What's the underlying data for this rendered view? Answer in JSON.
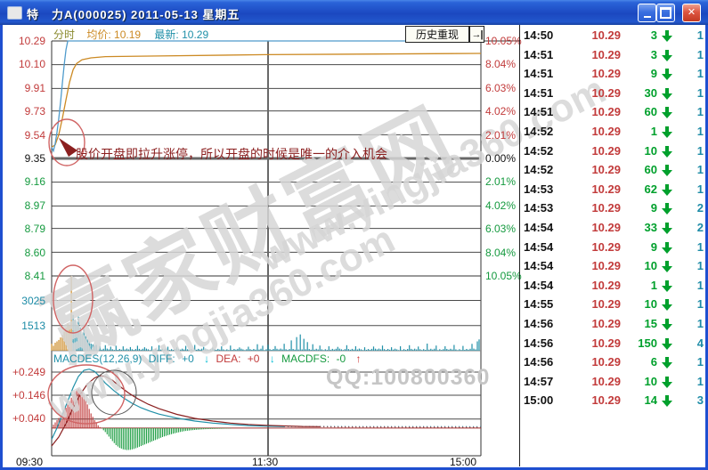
{
  "palette": {
    "up": "#c23b3b",
    "down": "#159a3f",
    "flat": "#111111",
    "teal": "#2090a8",
    "orange": "#cc8a24",
    "blue": "#4f9bcc",
    "list_green": "#00a02c",
    "count_teal": "#1c8ba6",
    "annotation": "#8b1f1f",
    "watermark": "#d6d6d6"
  },
  "window": {
    "title": "特　力A(000025) 2011-05-13 星期五"
  },
  "header": {
    "mode": "分时",
    "avg_label": "均价:",
    "avg_value": "10.19",
    "last_label": "最新:",
    "last_value": "10.29",
    "history_button": "历史重现",
    "next_button": "→|"
  },
  "macd_header": {
    "name": "MACDES(12,26,9)",
    "diff_label": "DIFF:",
    "diff_value": "+0",
    "dea_label": "DEA:",
    "dea_value": "+0",
    "macdfs_label": "MACDFS:",
    "macdfs_value": "-0",
    "down_arrow": "↓",
    "up_arrow": "↑"
  },
  "annotation": {
    "text": "股价开盘即拉升涨停，所以开盘的时候是唯一的介入机会"
  },
  "watermark": {
    "site_cn": "赢家财富网",
    "site_url": "www.yingjia360.com",
    "site_url2": "www.yingjia360.com",
    "qq": "QQ:100800360"
  },
  "axes": {
    "price": [
      {
        "t": "10.29",
        "k": "up"
      },
      {
        "t": "10.10",
        "k": "up"
      },
      {
        "t": "9.91",
        "k": "up"
      },
      {
        "t": "9.73",
        "k": "up"
      },
      {
        "t": "9.54",
        "k": "up"
      },
      {
        "t": "9.35",
        "k": "flat"
      },
      {
        "t": "9.16",
        "k": "down"
      },
      {
        "t": "8.97",
        "k": "down"
      },
      {
        "t": "8.79",
        "k": "down"
      },
      {
        "t": "8.60",
        "k": "down"
      },
      {
        "t": "8.41",
        "k": "down"
      }
    ],
    "percent": [
      {
        "t": "10.05%",
        "k": "up"
      },
      {
        "t": "8.04%",
        "k": "up"
      },
      {
        "t": "6.03%",
        "k": "up"
      },
      {
        "t": "4.02%",
        "k": "up"
      },
      {
        "t": "2.01%",
        "k": "up"
      },
      {
        "t": "0.00%",
        "k": "flat"
      },
      {
        "t": "2.01%",
        "k": "down"
      },
      {
        "t": "4.02%",
        "k": "down"
      },
      {
        "t": "6.03%",
        "k": "down"
      },
      {
        "t": "8.04%",
        "k": "down"
      },
      {
        "t": "10.05%",
        "k": "down"
      }
    ],
    "volume": [
      {
        "t": "3025",
        "k": "teal"
      },
      {
        "t": "1513",
        "k": "teal"
      }
    ],
    "macd": [
      {
        "t": "+0.249",
        "k": "up"
      },
      {
        "t": "+0.146",
        "k": "up"
      },
      {
        "t": "+0.040",
        "k": "up"
      }
    ],
    "time": [
      {
        "t": "09:30",
        "k": "t0"
      },
      {
        "t": "11:30",
        "k": "t1"
      },
      {
        "t": "15:00",
        "k": "t2"
      }
    ]
  },
  "trade_list": {
    "arrow_direction": "down",
    "rows": [
      {
        "time": "14:50",
        "price": "10.29",
        "vol": "3",
        "cnt": "1"
      },
      {
        "time": "14:51",
        "price": "10.29",
        "vol": "3",
        "cnt": "1"
      },
      {
        "time": "14:51",
        "price": "10.29",
        "vol": "9",
        "cnt": "1"
      },
      {
        "time": "14:51",
        "price": "10.29",
        "vol": "30",
        "cnt": "1"
      },
      {
        "time": "14:51",
        "price": "10.29",
        "vol": "60",
        "cnt": "1"
      },
      {
        "time": "14:52",
        "price": "10.29",
        "vol": "1",
        "cnt": "1"
      },
      {
        "time": "14:52",
        "price": "10.29",
        "vol": "10",
        "cnt": "1"
      },
      {
        "time": "14:52",
        "price": "10.29",
        "vol": "60",
        "cnt": "1"
      },
      {
        "time": "14:53",
        "price": "10.29",
        "vol": "62",
        "cnt": "1"
      },
      {
        "time": "14:53",
        "price": "10.29",
        "vol": "9",
        "cnt": "2"
      },
      {
        "time": "14:54",
        "price": "10.29",
        "vol": "33",
        "cnt": "2"
      },
      {
        "time": "14:54",
        "price": "10.29",
        "vol": "9",
        "cnt": "1"
      },
      {
        "time": "14:54",
        "price": "10.29",
        "vol": "10",
        "cnt": "1"
      },
      {
        "time": "14:54",
        "price": "10.29",
        "vol": "1",
        "cnt": "1"
      },
      {
        "time": "14:55",
        "price": "10.29",
        "vol": "10",
        "cnt": "1"
      },
      {
        "time": "14:56",
        "price": "10.29",
        "vol": "15",
        "cnt": "1"
      },
      {
        "time": "14:56",
        "price": "10.29",
        "vol": "150",
        "cnt": "4"
      },
      {
        "time": "14:56",
        "price": "10.29",
        "vol": "6",
        "cnt": "1"
      },
      {
        "time": "14:57",
        "price": "10.29",
        "vol": "10",
        "cnt": "1"
      },
      {
        "time": "15:00",
        "price": "10.29",
        "vol": "14",
        "cnt": "3"
      }
    ]
  },
  "chart_data": {
    "type": "line",
    "title": "分时",
    "x_axis": {
      "labels": [
        "09:30",
        "11:30",
        "15:00"
      ],
      "total_minutes": 240
    },
    "price_axis": {
      "max": 10.29,
      "mid": 9.35,
      "min": 8.41,
      "pct_max": 10.05
    },
    "series": [
      {
        "name": "price",
        "color_key": "blue",
        "points": [
          [
            0,
            9.44
          ],
          [
            1,
            9.41
          ],
          [
            2,
            9.47
          ],
          [
            3,
            9.56
          ],
          [
            4,
            9.67
          ],
          [
            5,
            9.8
          ],
          [
            6,
            9.95
          ],
          [
            7,
            10.1
          ],
          [
            8,
            10.22
          ],
          [
            9,
            10.29
          ],
          [
            240,
            10.29
          ]
        ]
      },
      {
        "name": "avg_price",
        "color_key": "orange",
        "points": [
          [
            0,
            9.44
          ],
          [
            2,
            9.46
          ],
          [
            4,
            9.54
          ],
          [
            6,
            9.67
          ],
          [
            8,
            9.82
          ],
          [
            10,
            9.96
          ],
          [
            12,
            10.06
          ],
          [
            14,
            10.11
          ],
          [
            17,
            10.14
          ],
          [
            22,
            10.155
          ],
          [
            30,
            10.165
          ],
          [
            60,
            10.17
          ],
          [
            120,
            10.18
          ],
          [
            240,
            10.19
          ]
        ]
      }
    ],
    "volume": {
      "gridlines": [
        3025,
        1513
      ],
      "scale_max": 4500,
      "bars": [
        [
          0,
          420,
          "o"
        ],
        [
          1,
          300,
          "o"
        ],
        [
          2,
          480,
          "o"
        ],
        [
          3,
          560,
          "o"
        ],
        [
          4,
          650,
          "o"
        ],
        [
          5,
          800,
          "o"
        ],
        [
          6,
          950,
          "o"
        ],
        [
          7,
          1150,
          "o"
        ],
        [
          8,
          1400,
          "o"
        ],
        [
          9,
          1650,
          "o"
        ],
        [
          10,
          1500,
          "o"
        ],
        [
          11,
          4500,
          "o"
        ],
        [
          12,
          2150,
          "b"
        ],
        [
          13,
          1850,
          "b"
        ],
        [
          14,
          1500,
          "b"
        ],
        [
          15,
          2050,
          "b"
        ],
        [
          16,
          1400,
          "b"
        ],
        [
          17,
          1000,
          "b"
        ],
        [
          18,
          1300,
          "b"
        ],
        [
          19,
          900,
          "b"
        ],
        [
          20,
          700,
          "b"
        ],
        [
          21,
          550,
          "b"
        ],
        [
          22,
          430,
          "b"
        ],
        [
          23,
          380,
          "b"
        ],
        [
          24,
          310,
          "b"
        ],
        [
          25,
          350,
          "b"
        ],
        [
          27,
          280,
          "b"
        ],
        [
          30,
          330,
          "b"
        ],
        [
          33,
          240,
          "b"
        ],
        [
          36,
          300,
          "b"
        ],
        [
          40,
          260,
          "b"
        ],
        [
          44,
          220,
          "b"
        ],
        [
          48,
          300,
          "b"
        ],
        [
          52,
          210,
          "b"
        ],
        [
          56,
          260,
          "b"
        ],
        [
          60,
          330,
          "b"
        ],
        [
          65,
          240,
          "b"
        ],
        [
          70,
          200,
          "b"
        ],
        [
          75,
          290,
          "b"
        ],
        [
          80,
          350,
          "b"
        ],
        [
          85,
          230,
          "b"
        ],
        [
          90,
          180,
          "b"
        ],
        [
          95,
          260,
          "b"
        ],
        [
          100,
          310,
          "b"
        ],
        [
          105,
          200,
          "b"
        ],
        [
          110,
          240,
          "b"
        ],
        [
          115,
          390,
          "b"
        ],
        [
          118,
          300,
          "b"
        ],
        [
          121,
          360,
          "b"
        ],
        [
          125,
          280,
          "b"
        ],
        [
          130,
          420,
          "b"
        ],
        [
          134,
          620,
          "b"
        ],
        [
          137,
          820,
          "b"
        ],
        [
          139,
          980,
          "b"
        ],
        [
          141,
          720,
          "b"
        ],
        [
          143,
          520,
          "b"
        ],
        [
          146,
          390,
          "b"
        ],
        [
          150,
          310,
          "b"
        ],
        [
          155,
          270,
          "b"
        ],
        [
          160,
          230,
          "b"
        ],
        [
          165,
          330,
          "b"
        ],
        [
          170,
          270,
          "b"
        ],
        [
          175,
          210,
          "b"
        ],
        [
          180,
          250,
          "b"
        ],
        [
          185,
          310,
          "b"
        ],
        [
          190,
          210,
          "b"
        ],
        [
          195,
          270,
          "b"
        ],
        [
          200,
          330,
          "b"
        ],
        [
          205,
          250,
          "b"
        ],
        [
          210,
          430,
          "b"
        ],
        [
          215,
          310,
          "b"
        ],
        [
          220,
          270,
          "b"
        ],
        [
          225,
          350,
          "b"
        ],
        [
          230,
          290,
          "b"
        ],
        [
          235,
          410,
          "b"
        ],
        [
          238,
          560,
          "b"
        ],
        [
          239,
          680,
          "b"
        ]
      ],
      "noise": {
        "base": 35,
        "range": 97
      }
    },
    "macd": {
      "name": "MACDES(12,26,9)",
      "gridlines": [
        0.249,
        0.146,
        0.04
      ],
      "diff": [
        [
          0,
          -0.05
        ],
        [
          3,
          0.0
        ],
        [
          6,
          0.06
        ],
        [
          9,
          0.12
        ],
        [
          12,
          0.18
        ],
        [
          15,
          0.23
        ],
        [
          18,
          0.257
        ],
        [
          21,
          0.262
        ],
        [
          24,
          0.252
        ],
        [
          27,
          0.228
        ],
        [
          30,
          0.2
        ],
        [
          35,
          0.165
        ],
        [
          40,
          0.135
        ],
        [
          45,
          0.11
        ],
        [
          50,
          0.09
        ],
        [
          55,
          0.075
        ],
        [
          60,
          0.062
        ],
        [
          70,
          0.044
        ],
        [
          80,
          0.031
        ],
        [
          90,
          0.022
        ],
        [
          100,
          0.016
        ],
        [
          110,
          0.011
        ],
        [
          120,
          0.008
        ],
        [
          130,
          0.007
        ],
        [
          240,
          0.006
        ]
      ],
      "dea": [
        [
          0,
          -0.08
        ],
        [
          4,
          -0.04
        ],
        [
          8,
          0.02
        ],
        [
          12,
          0.09
        ],
        [
          16,
          0.15
        ],
        [
          20,
          0.196
        ],
        [
          24,
          0.223
        ],
        [
          27,
          0.233
        ],
        [
          30,
          0.229
        ],
        [
          34,
          0.212
        ],
        [
          38,
          0.186
        ],
        [
          43,
          0.156
        ],
        [
          48,
          0.131
        ],
        [
          54,
          0.106
        ],
        [
          60,
          0.086
        ],
        [
          70,
          0.061
        ],
        [
          80,
          0.043
        ],
        [
          90,
          0.031
        ],
        [
          100,
          0.022
        ],
        [
          110,
          0.016
        ],
        [
          120,
          0.012
        ],
        [
          140,
          0.007
        ],
        [
          160,
          0.005
        ],
        [
          240,
          0.003
        ]
      ],
      "hist": [
        [
          1,
          0.015
        ],
        [
          2,
          0.025
        ],
        [
          3,
          0.035
        ],
        [
          4,
          0.045
        ],
        [
          5,
          0.055
        ],
        [
          6,
          0.065
        ],
        [
          7,
          0.075
        ],
        [
          8,
          0.09
        ],
        [
          9,
          0.105
        ],
        [
          10,
          0.12
        ],
        [
          11,
          0.135
        ],
        [
          12,
          0.15
        ],
        [
          13,
          0.16
        ],
        [
          14,
          0.17
        ],
        [
          15,
          0.175
        ],
        [
          16,
          0.17
        ],
        [
          17,
          0.16
        ],
        [
          18,
          0.145
        ],
        [
          19,
          0.125
        ],
        [
          20,
          0.105
        ],
        [
          21,
          0.085
        ],
        [
          22,
          0.065
        ],
        [
          23,
          0.05
        ],
        [
          24,
          0.035
        ],
        [
          25,
          0.022
        ],
        [
          26,
          0.012
        ],
        [
          27,
          0.004
        ],
        [
          28,
          -0.002
        ],
        [
          30,
          -0.018
        ],
        [
          32,
          -0.038
        ],
        [
          34,
          -0.058
        ],
        [
          36,
          -0.076
        ],
        [
          38,
          -0.088
        ],
        [
          40,
          -0.095
        ],
        [
          42,
          -0.098
        ],
        [
          44,
          -0.097
        ],
        [
          46,
          -0.093
        ],
        [
          48,
          -0.087
        ],
        [
          50,
          -0.08
        ],
        [
          53,
          -0.07
        ],
        [
          56,
          -0.06
        ],
        [
          59,
          -0.05
        ],
        [
          62,
          -0.04
        ],
        [
          65,
          -0.032
        ],
        [
          68,
          -0.025
        ],
        [
          71,
          -0.019
        ],
        [
          74,
          -0.014
        ],
        [
          78,
          -0.01
        ],
        [
          82,
          -0.007
        ],
        [
          86,
          -0.005
        ],
        [
          90,
          -0.004
        ],
        [
          95,
          -0.003
        ],
        [
          100,
          -0.002
        ]
      ]
    }
  }
}
